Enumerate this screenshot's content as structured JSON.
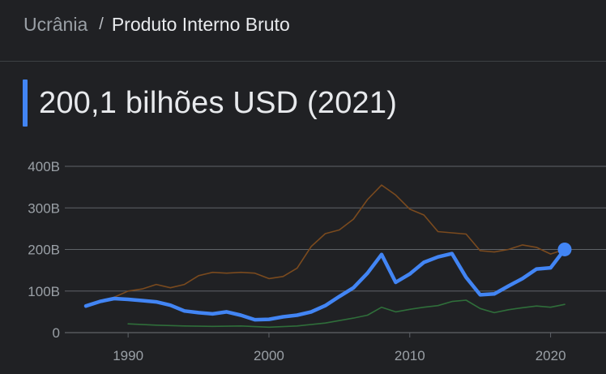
{
  "breadcrumb": {
    "parent": "Ucrânia",
    "separator": "/",
    "current": "Produto Interno Bruto"
  },
  "headline": {
    "value": "200,1 bilhões USD (2021)"
  },
  "colors": {
    "accent": "#4285f4",
    "series_main": "#4285f4",
    "series_brown": "#7a4a1e",
    "series_green": "#2f6e3a",
    "gridline": "#5f6368",
    "text_muted": "#9aa0a6",
    "text_primary": "#e8eaed"
  },
  "chart_data": {
    "type": "line",
    "xlim": [
      1985,
      2023
    ],
    "ylim": [
      0,
      400
    ],
    "y_ticks": [
      {
        "value": 400,
        "label": "400B"
      },
      {
        "value": 300,
        "label": "300B"
      },
      {
        "value": 200,
        "label": "200B"
      },
      {
        "value": 100,
        "label": "100B"
      },
      {
        "value": 0,
        "label": "0"
      }
    ],
    "x_ticks": [
      {
        "value": 1990,
        "label": "1990"
      },
      {
        "value": 2000,
        "label": "2000"
      },
      {
        "value": 2010,
        "label": "2010"
      },
      {
        "value": 2020,
        "label": "2020"
      }
    ],
    "grid": true,
    "highlight": {
      "x": 2021,
      "y": 200.1
    },
    "series": [
      {
        "key": "brown",
        "x": [
          1989,
          1990,
          1991,
          1992,
          1993,
          1994,
          1995,
          1996,
          1997,
          1998,
          1999,
          2000,
          2001,
          2002,
          2003,
          2004,
          2005,
          2006,
          2007,
          2008,
          2009,
          2010,
          2011,
          2012,
          2013,
          2014,
          2015,
          2016,
          2017,
          2018,
          2019,
          2020,
          2021
        ],
        "y": [
          85,
          100,
          105,
          116,
          108,
          116,
          137,
          145,
          143,
          145,
          143,
          130,
          135,
          155,
          207,
          238,
          247,
          273,
          320,
          355,
          331,
          297,
          283,
          243,
          240,
          237,
          197,
          194,
          200,
          211,
          205,
          189,
          200
        ]
      },
      {
        "key": "green",
        "x": [
          1990,
          1992,
          1994,
          1996,
          1998,
          2000,
          2002,
          2004,
          2006,
          2007,
          2008,
          2009,
          2010,
          2011,
          2012,
          2013,
          2014,
          2015,
          2016,
          2017,
          2018,
          2019,
          2020,
          2021
        ],
        "y": [
          21,
          18,
          16,
          15,
          16,
          13,
          16,
          23,
          35,
          42,
          61,
          50,
          56,
          61,
          65,
          75,
          78,
          58,
          48,
          55,
          60,
          64,
          61,
          68
        ]
      },
      {
        "key": "main",
        "x": [
          1987,
          1988,
          1989,
          1990,
          1991,
          1992,
          1993,
          1994,
          1995,
          1996,
          1997,
          1998,
          1999,
          2000,
          2001,
          2002,
          2003,
          2004,
          2005,
          2006,
          2007,
          2008,
          2009,
          2010,
          2011,
          2012,
          2013,
          2014,
          2015,
          2016,
          2017,
          2018,
          2019,
          2020,
          2021
        ],
        "y": [
          64,
          75,
          82,
          80,
          77,
          74,
          66,
          52,
          48,
          45,
          50,
          42,
          31,
          32,
          38,
          42,
          50,
          65,
          87,
          108,
          143,
          188,
          121,
          141,
          169,
          182,
          190,
          133,
          91,
          93,
          112,
          130,
          153,
          156,
          200.1
        ]
      }
    ]
  }
}
